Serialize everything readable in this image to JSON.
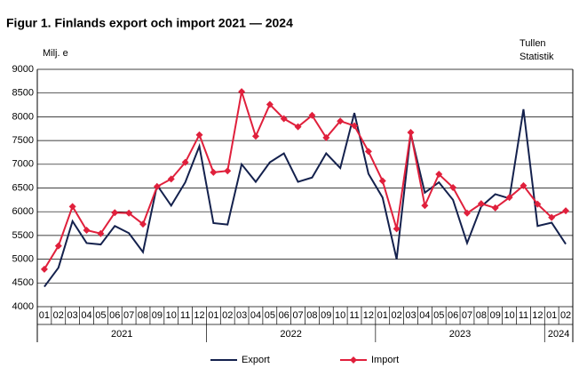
{
  "chart_data": {
    "type": "line",
    "title": "Figur 1. Finlands export och import 2021 — 2024",
    "y_label": "Milj. e",
    "source": [
      "Tullen",
      "Statistik"
    ],
    "groups": [
      {
        "label": "2021",
        "categories": [
          "01",
          "02",
          "03",
          "04",
          "05",
          "06",
          "07",
          "08",
          "09",
          "10",
          "11",
          "12"
        ]
      },
      {
        "label": "2022",
        "categories": [
          "01",
          "02",
          "03",
          "04",
          "05",
          "06",
          "07",
          "08",
          "09",
          "10",
          "11",
          "12"
        ]
      },
      {
        "label": "2023",
        "categories": [
          "01",
          "02",
          "03",
          "04",
          "05",
          "06",
          "07",
          "08",
          "09",
          "10",
          "11",
          "12"
        ]
      },
      {
        "label": "2024",
        "categories": [
          "01",
          "02"
        ]
      }
    ],
    "series": [
      {
        "name": "Export",
        "color": "#14214d",
        "marker": false,
        "values": [
          4420,
          4820,
          5800,
          5340,
          5310,
          5700,
          5550,
          5150,
          6560,
          6130,
          6620,
          7380,
          5760,
          5730,
          7000,
          6630,
          7040,
          7230,
          6630,
          6720,
          7230,
          6920,
          8080,
          6800,
          6300,
          5000,
          7650,
          6400,
          6620,
          6250,
          5340,
          6110,
          6370,
          6280,
          8160,
          5700,
          5770,
          5320
        ]
      },
      {
        "name": "Import",
        "color": "#e0203c",
        "marker": true,
        "values": [
          4790,
          5280,
          6110,
          5610,
          5540,
          5980,
          5970,
          5740,
          6530,
          6690,
          7040,
          7620,
          6830,
          6860,
          8530,
          7590,
          8260,
          7960,
          7790,
          8030,
          7560,
          7910,
          7810,
          7270,
          6650,
          5640,
          7670,
          6130,
          6790,
          6510,
          5970,
          6170,
          6080,
          6300,
          6550,
          6160,
          5880,
          6020
        ]
      }
    ],
    "ylim": [
      4000,
      9000
    ],
    "yticks": [
      4000,
      4500,
      5000,
      5500,
      6000,
      6500,
      7000,
      7500,
      8000,
      8500,
      9000
    ],
    "grid": true
  }
}
